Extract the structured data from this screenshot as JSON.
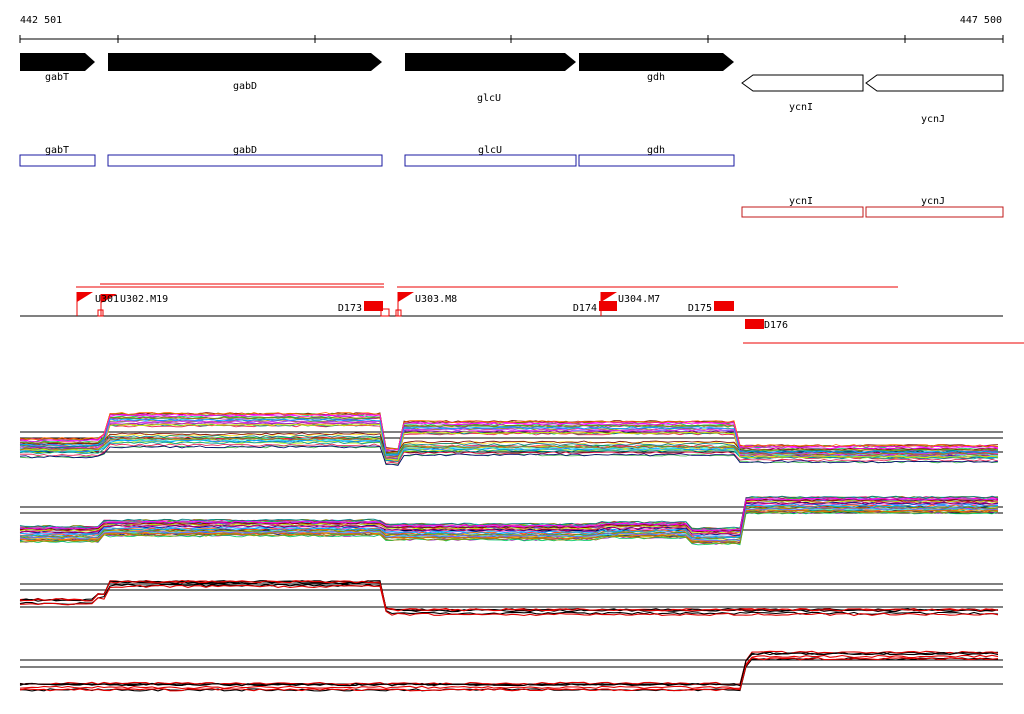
{
  "ruler": {
    "start_label": "442 501",
    "end_label": "447 500"
  },
  "genes": [
    {
      "name": "gabT",
      "strand": "+"
    },
    {
      "name": "gabD",
      "strand": "+"
    },
    {
      "name": "glcU",
      "strand": "+"
    },
    {
      "name": "gdh",
      "strand": "+"
    },
    {
      "name": "ycnI",
      "strand": "-"
    },
    {
      "name": "ycnJ",
      "strand": "-"
    }
  ],
  "forward_boxes": [
    "gabT",
    "gabD",
    "glcU",
    "gdh"
  ],
  "reverse_boxes": [
    "ycnI",
    "ycnJ"
  ],
  "promoter_labels": [
    "U301",
    "U302.M19",
    "U303.M8",
    "U304.M7"
  ],
  "terminator_labels": [
    "D173",
    "D174",
    "D175",
    "D176"
  ],
  "colors": {
    "gene_fill": "#000000",
    "forward_box": "#1a1aa0",
    "reverse_box": "#c01818",
    "feature": "#ee0000",
    "axis": "#000000"
  }
}
